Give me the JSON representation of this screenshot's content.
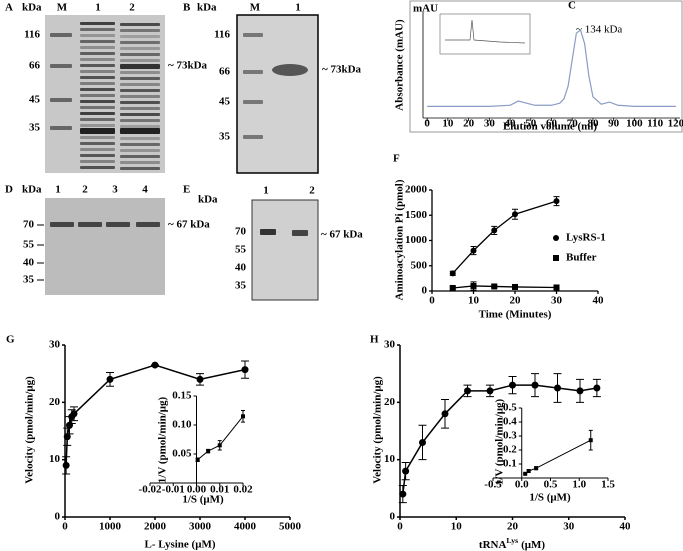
{
  "gels": [
    {
      "label": "A",
      "unit": "kDa",
      "lanes": [
        "M",
        "1",
        "2"
      ],
      "markers": [
        116,
        66,
        45,
        35
      ],
      "annotation": "~ 73kDa"
    },
    {
      "label": "B",
      "unit": "kDa",
      "lanes": [
        "M",
        "1"
      ],
      "markers": [
        116,
        66,
        45,
        35
      ],
      "annotation": "~ 73kDa"
    },
    {
      "label": "D",
      "unit": "kDa",
      "lanes": [
        "1",
        "2",
        "3",
        "4"
      ],
      "markers": [
        70,
        55,
        40,
        35
      ],
      "annotation": "~ 67 kDa"
    },
    {
      "label": "E",
      "unit": "kDa",
      "lanes": [
        "1",
        "2"
      ],
      "markers": [
        70,
        55,
        40,
        35
      ],
      "annotation": "~ 67 kDa"
    }
  ],
  "chart_data": [
    {
      "type": "line",
      "label": "C",
      "xlabel": "Elution volume (ml)",
      "ylabel": "Absorbance (mAU)",
      "unit_label": "mAU",
      "annotation": "~ 134 kDa",
      "x": [
        0,
        10,
        20,
        30,
        40,
        44,
        48,
        52,
        56,
        60,
        64,
        66,
        68,
        70,
        72,
        74,
        76,
        78,
        80,
        84,
        88,
        92,
        100,
        110,
        120
      ],
      "values": [
        11,
        11,
        11,
        11,
        12,
        16,
        14,
        12,
        12,
        12,
        14,
        18,
        30,
        55,
        80,
        83,
        70,
        40,
        20,
        13,
        15,
        12,
        11,
        11,
        11
      ],
      "color": "#8a9cc4",
      "xlim": [
        -2,
        122
      ],
      "xticks": [
        0,
        10,
        20,
        30,
        40,
        50,
        60,
        70,
        80,
        90,
        100,
        110,
        120
      ],
      "ylim": [
        0,
        100
      ]
    },
    {
      "type": "line",
      "label": "F",
      "xlabel": "Time (Minutes)",
      "ylabel": "Aminoacylation Pi (pmol)",
      "x": [
        5,
        10,
        15,
        20,
        30
      ],
      "series": [
        {
          "name": "LysRS-1",
          "color": "#000000",
          "marker": "circle",
          "values": [
            350,
            800,
            1200,
            1520,
            1780
          ],
          "errors": [
            40,
            80,
            80,
            100,
            90
          ]
        },
        {
          "name": "Buffer",
          "color": "#000000",
          "marker": "square",
          "values": [
            60,
            100,
            90,
            80,
            70
          ],
          "errors": [
            20,
            80,
            20,
            20,
            10
          ]
        }
      ],
      "xlim": [
        0,
        40
      ],
      "xticks": [
        0,
        10,
        20,
        30,
        40
      ],
      "ylim": [
        0,
        2000
      ],
      "yticks": [
        0,
        500,
        1000,
        1500,
        2000
      ],
      "legend": "right"
    },
    {
      "type": "line",
      "label": "G",
      "xlabel": "L- Lysine (μM)",
      "ylabel": "Velocity (pmol/min/μg)",
      "x": [
        25,
        50,
        100,
        150,
        200,
        1000,
        2000,
        3000,
        4000
      ],
      "values": [
        9,
        14,
        16,
        17.5,
        18,
        24,
        26.5,
        24,
        25.7
      ],
      "errors": [
        1.5,
        1.5,
        1.5,
        1.2,
        1.2,
        1.2,
        0,
        1,
        1.5
      ],
      "color": "#000000",
      "marker": "circle",
      "xlim": [
        0,
        5000
      ],
      "xticks": [
        0,
        1000,
        2000,
        3000,
        4000,
        5000
      ],
      "ylim": [
        0,
        30
      ],
      "yticks": [
        0,
        10,
        20,
        30
      ],
      "inset": {
        "type": "line",
        "xlabel": "1/S (μM)",
        "ylabel": "1/V (pmol/min/μg)",
        "x": [
          0.0005,
          0.005,
          0.01,
          0.02
        ],
        "values": [
          0.04,
          0.055,
          0.065,
          0.115
        ],
        "errors": [
          0.003,
          0.003,
          0.008,
          0.01
        ],
        "color": "#000000",
        "marker": "square",
        "xlim": [
          -0.02,
          0.02
        ],
        "xticks": [
          -0.02,
          -0.01,
          {
            "value": 0,
            "label": "0.00"
          },
          0.01,
          0.02
        ],
        "ylim": [
          0,
          0.15
        ],
        "yticks": [
          0.05,
          {
            "value": 0.1,
            "label": "0.10"
          },
          0.15
        ],
        "y_axis_at_zero": true
      }
    },
    {
      "type": "line",
      "label": "H",
      "xlabel": "tRNA",
      "xlabel_superscript": "Lys",
      "xlabel_unit": "(μM)",
      "ylabel": "Velocity (pmol/min/μg)",
      "x": [
        0.5,
        1,
        4,
        8,
        12,
        16,
        20,
        24,
        28,
        32,
        35
      ],
      "values": [
        4,
        8,
        13,
        18,
        22,
        22,
        23,
        23,
        22.5,
        22,
        22.5
      ],
      "errors": [
        1.5,
        1.5,
        3,
        2.5,
        1,
        1,
        1.5,
        2,
        2.5,
        2,
        1.5
      ],
      "color": "#000000",
      "marker": "circle",
      "xlim": [
        0,
        40
      ],
      "xticks": [
        0,
        10,
        20,
        30,
        40
      ],
      "ylim": [
        0,
        30
      ],
      "yticks": [
        0,
        10,
        20,
        30
      ],
      "inset": {
        "type": "line",
        "xlabel": "1/S (μM)",
        "ylabel": "1/V (pmol/min/μg)",
        "x": [
          0.06,
          0.12,
          0.25,
          1.2
        ],
        "values": [
          0.03,
          0.05,
          0.07,
          0.27
        ],
        "errors": [
          0,
          0.01,
          0.01,
          0.07
        ],
        "color": "#000000",
        "marker": "square",
        "xlim": [
          -0.5,
          1.5
        ],
        "xticks": [
          -0.5,
          {
            "value": 0,
            "label": "0.0"
          },
          0.5,
          {
            "value": 1,
            "label": "1.0"
          },
          1.5
        ],
        "ylim": [
          0,
          0.5
        ],
        "yticks": [
          0.1,
          0.2,
          0.3,
          0.4,
          0.5
        ],
        "y_axis_at_zero": true
      }
    }
  ]
}
